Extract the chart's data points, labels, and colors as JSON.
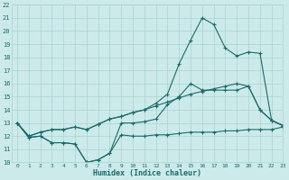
{
  "xlabel": "Humidex (Indice chaleur)",
  "bg_color": "#cceaea",
  "grid_color": "#aad2d2",
  "line_color": "#1a6b6b",
  "x_values": [
    0,
    1,
    2,
    3,
    4,
    5,
    6,
    7,
    8,
    9,
    10,
    11,
    12,
    13,
    14,
    15,
    16,
    17,
    18,
    19,
    20,
    21,
    22,
    23
  ],
  "ylim": [
    10,
    22
  ],
  "xlim": [
    -0.5,
    23
  ],
  "line_jagged": [
    13,
    11.9,
    12,
    11.5,
    11.5,
    11.4,
    10.0,
    10.2,
    10.7,
    13.0,
    13.0,
    13.1,
    13.3,
    14.4,
    15.0,
    16.0,
    15.5,
    15.5,
    15.5,
    15.5,
    15.8,
    14.0,
    13.2,
    12.8
  ],
  "line_flat": [
    13,
    11.9,
    12,
    11.5,
    11.5,
    11.4,
    10.0,
    10.2,
    10.7,
    12.1,
    12.0,
    12.0,
    12.1,
    12.1,
    12.2,
    12.3,
    12.3,
    12.3,
    12.4,
    12.4,
    12.5,
    12.5,
    12.5,
    12.7
  ],
  "line_mid": [
    13,
    12.0,
    12.3,
    12.5,
    12.5,
    12.7,
    12.5,
    12.9,
    13.3,
    13.5,
    13.8,
    14.0,
    14.3,
    14.6,
    14.9,
    15.2,
    15.4,
    15.6,
    15.8,
    16.0,
    15.8,
    14.0,
    13.2,
    12.8
  ],
  "line_peak": [
    13,
    12.0,
    12.3,
    12.5,
    12.5,
    12.7,
    12.5,
    12.9,
    13.3,
    13.5,
    13.8,
    14.0,
    14.5,
    15.2,
    17.5,
    19.3,
    21.0,
    20.5,
    18.7,
    18.1,
    18.4,
    18.3,
    13.2,
    12.8
  ]
}
